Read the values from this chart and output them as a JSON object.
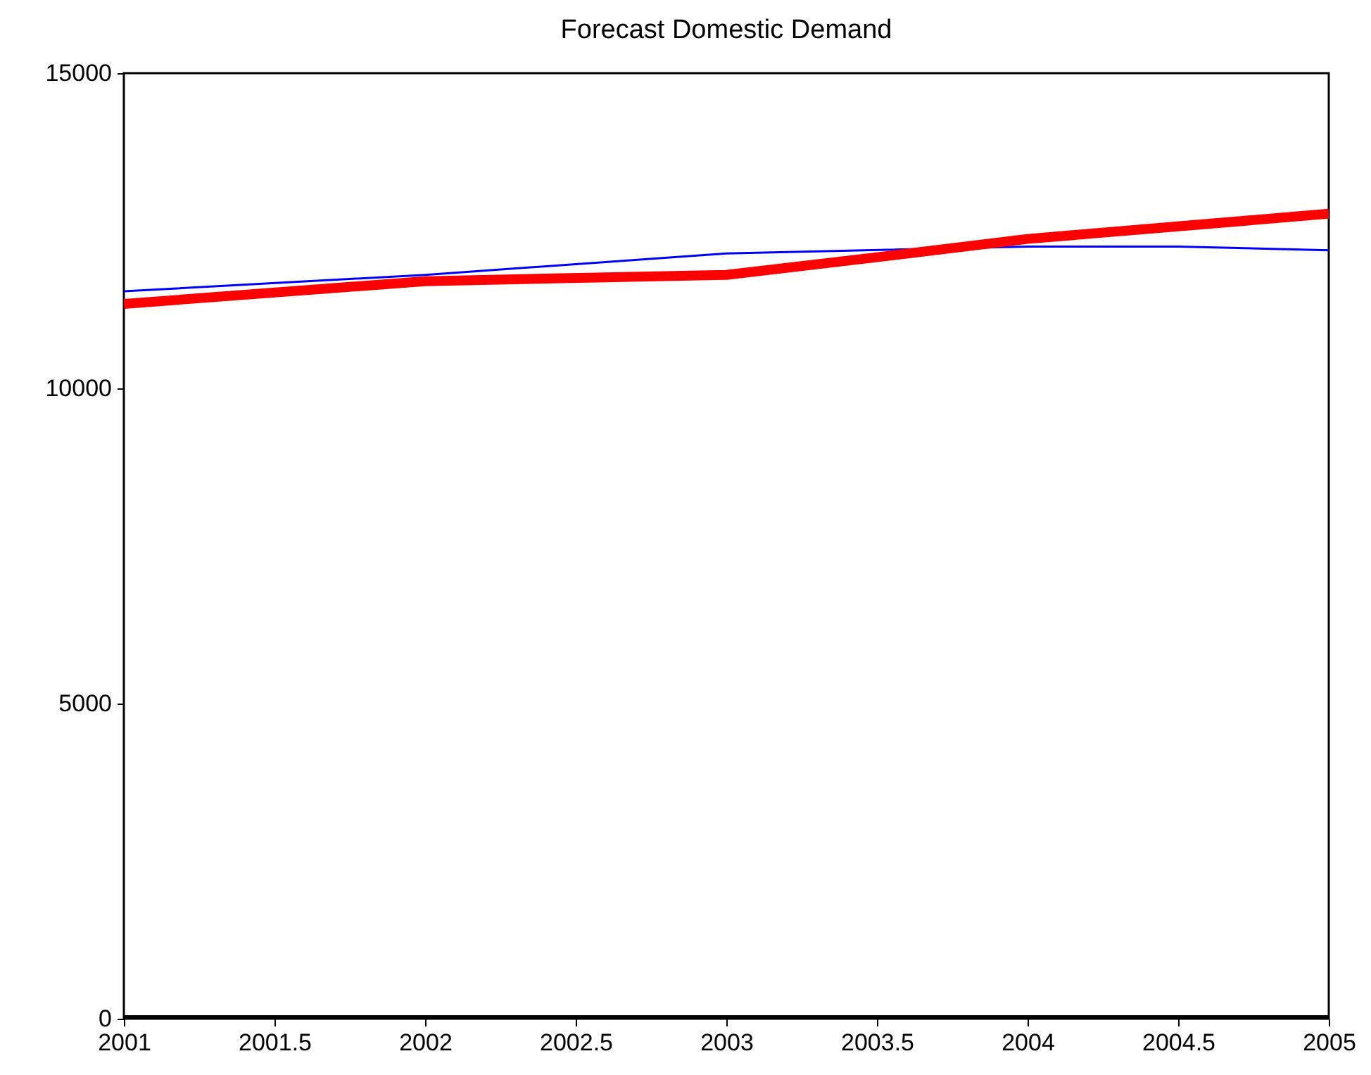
{
  "chart_data": {
    "type": "line",
    "title": "Forecast Domestic Demand",
    "x": [
      2001,
      2002,
      2003,
      2004,
      2004.5,
      2005
    ],
    "series": [
      {
        "color": "#0000ff",
        "values": [
          11540,
          11800,
          12140,
          12250,
          12250,
          12190
        ]
      },
      {
        "color": "#ff0000",
        "x": [
          2001,
          2002,
          2003,
          2003.5,
          2004,
          2005
        ],
        "values": [
          11340,
          11700,
          11800,
          12080,
          12370,
          12770
        ]
      },
      {
        "color": "#000000",
        "x": [
          2001,
          2005
        ],
        "values": [
          0,
          0
        ]
      }
    ],
    "xlim": [
      2001,
      2005
    ],
    "xticks": [
      2001,
      2001.5,
      2002,
      2002.5,
      2003,
      2003.5,
      2004,
      2004.5,
      2005
    ],
    "ylim": [
      0,
      15000
    ],
    "yticks": [
      0,
      5000,
      10000,
      15000
    ],
    "line_style": "solid",
    "marker": "none"
  }
}
